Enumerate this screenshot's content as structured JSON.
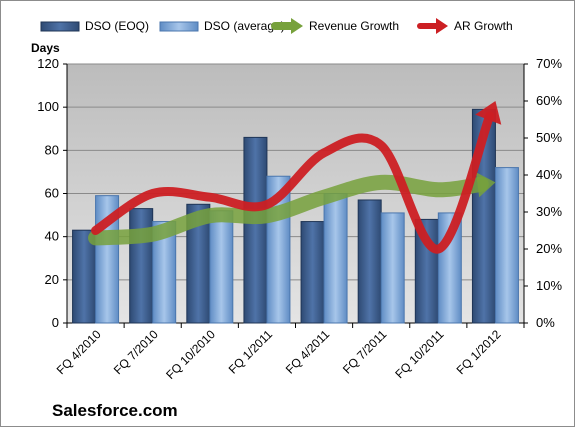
{
  "chart_data": {
    "type": "bar",
    "title": "",
    "ylabel": "Days",
    "company": "Salesforce.com",
    "categories": [
      "FQ 4/2010",
      "FQ 7/2010",
      "FQ 10/2010",
      "FQ 1/2011",
      "FQ 4/2011",
      "FQ 7/2011",
      "FQ 10/2011",
      "FQ 1/2012"
    ],
    "left_axis": {
      "min": 0,
      "max": 120,
      "step": 20,
      "ticks": [
        "0",
        "20",
        "40",
        "60",
        "80",
        "100",
        "120"
      ]
    },
    "right_axis": {
      "min": 0,
      "max": 70,
      "step": 10,
      "ticks": [
        "0%",
        "10%",
        "20%",
        "30%",
        "40%",
        "50%",
        "60%",
        "70%"
      ]
    },
    "grid": true,
    "legend_position": "top",
    "series": [
      {
        "name": "DSO (EOQ)",
        "type": "bar",
        "axis": "left",
        "color": "#3e5f8e",
        "values": [
          43,
          53,
          55,
          86,
          47,
          57,
          48,
          99
        ]
      },
      {
        "name": "DSO (average)",
        "type": "bar",
        "axis": "left",
        "color": "#7fa7d6",
        "values": [
          59,
          47,
          52,
          68,
          60,
          51,
          51,
          72
        ]
      },
      {
        "name": "Revenue Growth",
        "type": "line-arrow",
        "axis": "right",
        "unit": "%",
        "color": "#77a13c",
        "values": [
          23,
          24,
          29,
          29,
          34,
          38,
          36,
          38
        ]
      },
      {
        "name": "AR Growth",
        "type": "line-arrow",
        "axis": "right",
        "unit": "%",
        "color": "#cc1f23",
        "values": [
          25,
          35,
          34,
          32,
          46,
          48,
          20,
          60
        ]
      }
    ]
  }
}
